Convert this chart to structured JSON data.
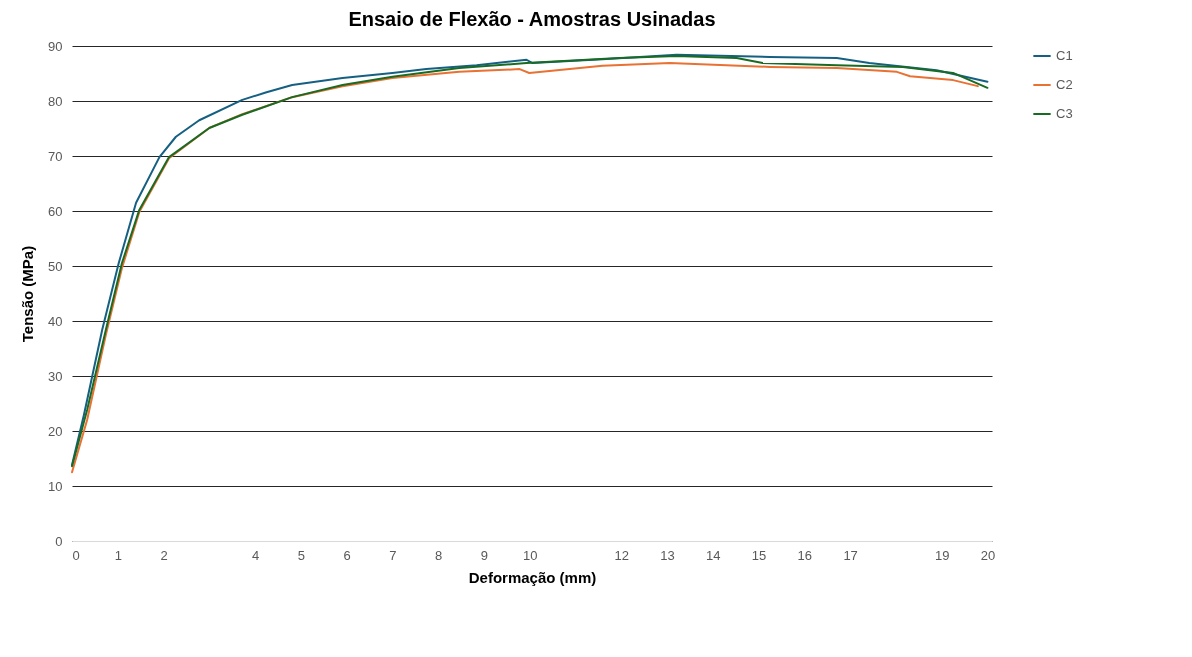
{
  "chart_data": {
    "type": "line",
    "title": "Ensaio de Flexão - Amostras Usinadas",
    "xlabel": "Deformação (mm)",
    "ylabel": "Tensão (MPa)",
    "xlim": [
      0,
      20.1
    ],
    "xticks": [
      0,
      1,
      2,
      4,
      5,
      6,
      7,
      8,
      9,
      10,
      12,
      13,
      14,
      15,
      16,
      17,
      19,
      20
    ],
    "ylim": [
      0,
      90
    ],
    "yticks": [
      0,
      10,
      20,
      30,
      40,
      50,
      60,
      70,
      80,
      90
    ],
    "grid": "y",
    "legend": "right",
    "marker": "none",
    "line_style": "solid",
    "series": [
      {
        "name": "C1",
        "color": "#156082",
        "x": [
          0,
          0.26,
          0.66,
          1.02,
          1.4,
          1.91,
          2.27,
          2.78,
          3.72,
          4.25,
          4.81,
          5.91,
          7.0,
          7.74,
          8.84,
          9.93,
          10.06,
          11.59,
          13.21,
          15.25,
          16.71,
          17.42,
          18.89,
          20.0
        ],
        "values": [
          13.8,
          22.9,
          38.4,
          50.5,
          61.5,
          69.8,
          73.5,
          76.5,
          80.2,
          81.6,
          82.9,
          84.2,
          85.1,
          85.8,
          86.5,
          87.5,
          86.9,
          87.6,
          88.4,
          88.0,
          87.8,
          86.9,
          85.6,
          83.5
        ]
      },
      {
        "name": "C2",
        "color": "#e97132",
        "x": [
          0,
          0.33,
          0.74,
          1.09,
          1.47,
          2.12,
          3.0,
          3.72,
          4.81,
          5.91,
          7.0,
          8.46,
          9.78,
          9.99,
          11.59,
          13.06,
          15.25,
          16.71,
          18.02,
          18.31,
          19.25,
          19.79
        ],
        "values": [
          12.5,
          22.0,
          37.5,
          49.6,
          59.8,
          69.6,
          75.1,
          77.6,
          80.7,
          82.7,
          84.2,
          85.3,
          85.8,
          85.1,
          86.4,
          86.9,
          86.2,
          86.0,
          85.3,
          84.5,
          83.8,
          82.7
        ]
      },
      {
        "name": "C3",
        "color": "#196b24",
        "x": [
          0,
          0.33,
          0.74,
          1.09,
          1.47,
          2.12,
          3.0,
          3.72,
          4.81,
          5.91,
          7.0,
          8.46,
          9.93,
          11.96,
          13.21,
          14.52,
          15.09,
          16.71,
          18.15,
          19.25,
          20.0
        ],
        "values": [
          13.6,
          23.8,
          38.4,
          50.5,
          60.2,
          69.8,
          75.1,
          77.5,
          80.7,
          82.9,
          84.4,
          86.0,
          86.9,
          87.8,
          88.2,
          87.8,
          86.9,
          86.5,
          86.2,
          85.1,
          82.4
        ]
      }
    ]
  }
}
